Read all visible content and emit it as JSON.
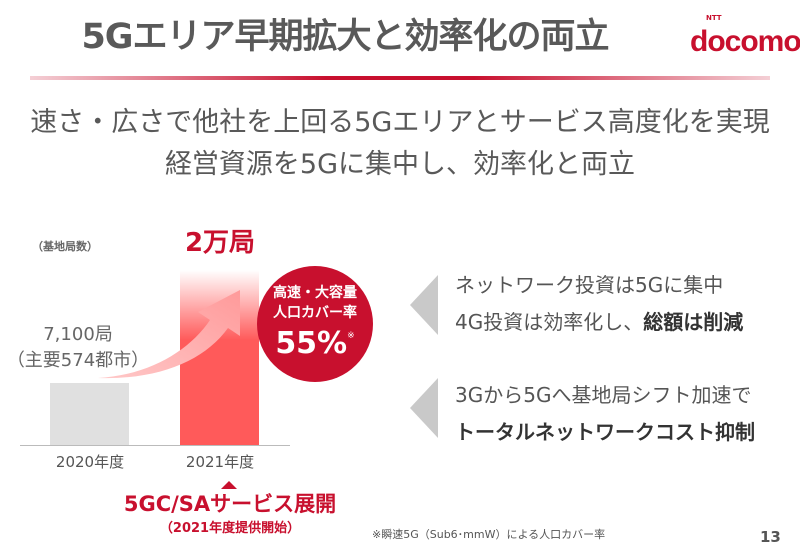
{
  "title": "5Gエリア早期拡大と効率化の両立",
  "logo": {
    "brand": "docomo",
    "prefix": "NTT"
  },
  "subtitle": [
    "速さ・広さで他社を上回る5Gエリアとサービス高度化を実現",
    "経営資源を5Gに集中し、効率化と両立"
  ],
  "chart_data": {
    "type": "bar",
    "ylabel": "（基地局数）",
    "categories": [
      "2020年度",
      "2021年度"
    ],
    "values": [
      7100,
      20000
    ],
    "data_labels": [
      "7,100局",
      "2万局"
    ],
    "annotation_2020": "（主要574都市）"
  },
  "badge": {
    "line1": "高速・大容量",
    "line2": "人口カバー率",
    "value": "55%",
    "mark": "※"
  },
  "milestone": {
    "title": "5GC/SAサービス展開",
    "note": "（2021年度提供開始）"
  },
  "points": [
    {
      "line1": "ネットワーク投資は5Gに集中",
      "line2_plain": "4G投資は効率化し、",
      "line2_bold": "総額は削減"
    },
    {
      "line1": "3Gから5Gへ基地局シフト加速で",
      "line2_bold": "トータルネットワークコスト抑制"
    }
  ],
  "footnote": "※瞬速5G（Sub6･mmW）による人口カバー率",
  "page_number": "13",
  "colors": {
    "accent": "#c8102e",
    "bar_2020": "#e0e0e0",
    "bar_2021": "#ff5a5a"
  }
}
